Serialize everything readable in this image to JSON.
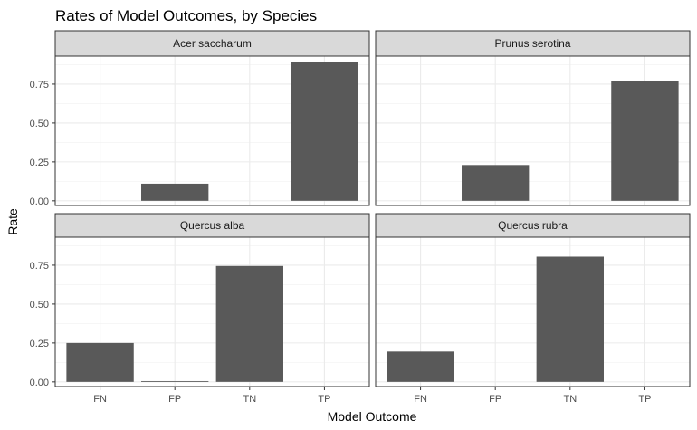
{
  "chart_data": {
    "type": "bar",
    "title": "Rates of Model Outcomes, by Species",
    "xlabel": "Model Outcome",
    "ylabel": "Rate",
    "categories": [
      "FN",
      "FP",
      "TN",
      "TP"
    ],
    "ylim": [
      -0.03,
      0.93
    ],
    "yticks": [
      0.0,
      0.25,
      0.5,
      0.75
    ],
    "ytick_labels": [
      "0.00",
      "0.25",
      "0.50",
      "0.75"
    ],
    "grid": true,
    "bar_color": "#595959",
    "panels": [
      {
        "name": "Acer saccharum",
        "values": [
          0.0,
          0.11,
          0.0,
          0.89
        ]
      },
      {
        "name": "Prunus serotina",
        "values": [
          0.0,
          0.23,
          0.0,
          0.77
        ]
      },
      {
        "name": "Quercus alba",
        "values": [
          0.25,
          0.005,
          0.745,
          0.0
        ]
      },
      {
        "name": "Quercus rubra",
        "values": [
          0.195,
          0.0,
          0.805,
          0.0
        ]
      }
    ]
  }
}
